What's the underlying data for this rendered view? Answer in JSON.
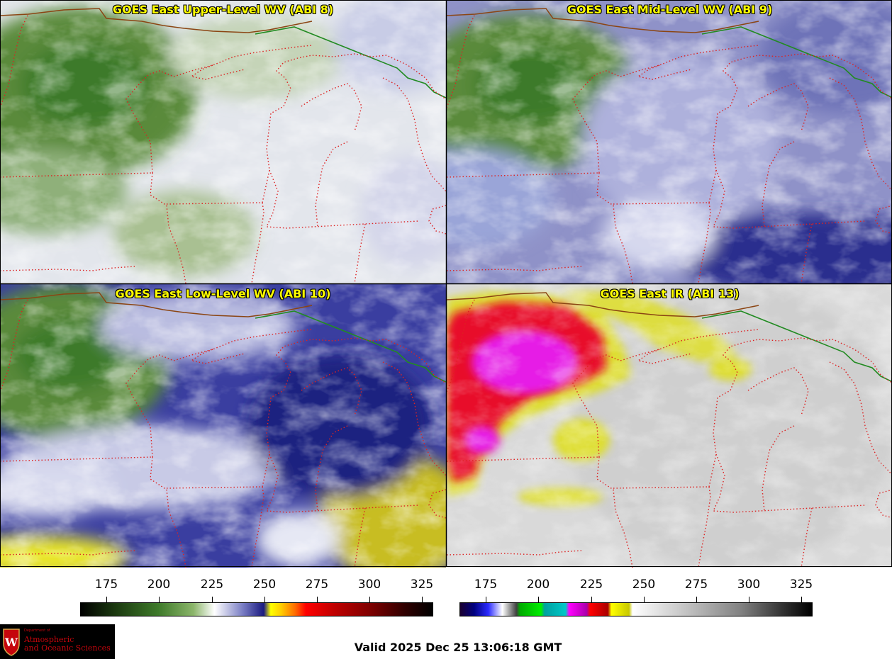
{
  "panels": [
    {
      "title": "GOES East Upper-Level WV (ABI 8)",
      "palette": "wv",
      "band": "ABI 8"
    },
    {
      "title": "GOES East Mid-Level WV (ABI 9)",
      "palette": "wv-mid",
      "band": "ABI 9"
    },
    {
      "title": "GOES East Low-Level WV (ABI 10)",
      "palette": "wv-low",
      "band": "ABI 10"
    },
    {
      "title": "GOES East IR (ABI 13)",
      "palette": "ir",
      "band": "ABI 13"
    }
  ],
  "colorbars": [
    {
      "name": "water-vapor",
      "ticks": [
        "175",
        "200",
        "225",
        "250",
        "275",
        "300",
        "325"
      ]
    },
    {
      "name": "infrared",
      "ticks": [
        "175",
        "200",
        "225",
        "250",
        "275",
        "300",
        "325"
      ]
    }
  ],
  "valid_time": "Valid 2025 Dec 25 13:06:18 GMT",
  "logo": {
    "line1": "Department of",
    "line2": "Atmospheric",
    "line3": "and Oceanic Sciences"
  },
  "colors": {
    "title_text": "#ffff00",
    "state_borders": "#dd2222",
    "international_border": "#228B22",
    "coastline": "#8b4513",
    "logo_red": "#c5050c"
  }
}
